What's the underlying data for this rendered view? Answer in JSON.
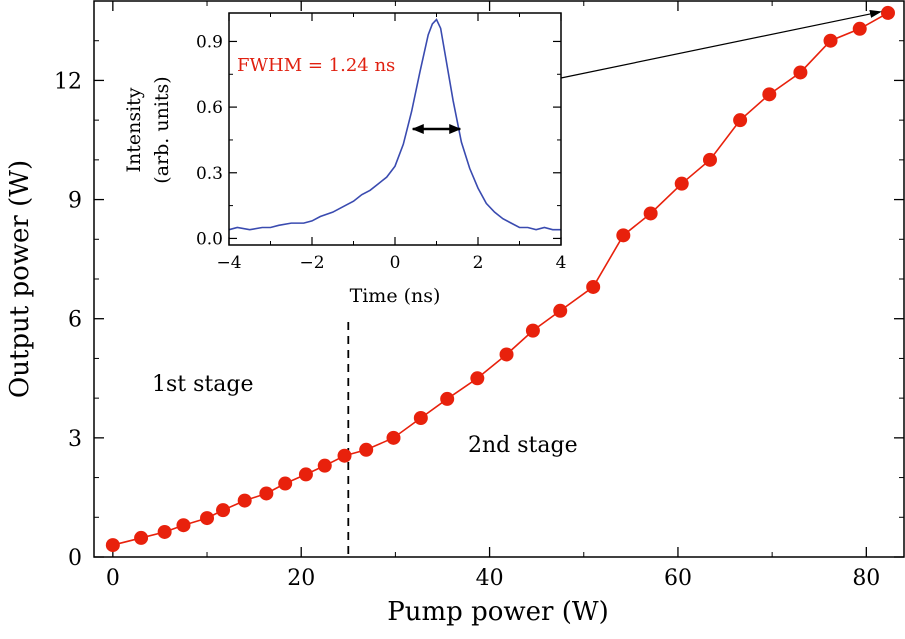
{
  "chart_data": [
    {
      "type": "line",
      "name": "main",
      "xlabel": "Pump power (W)",
      "ylabel": "Output power (W)",
      "xlim": [
        -2,
        84
      ],
      "ylim": [
        0,
        14
      ],
      "xticks": [
        0,
        20,
        40,
        60,
        80
      ],
      "yticks": [
        0,
        3,
        6,
        9,
        12
      ],
      "xtick_labels": [
        "0",
        "20",
        "40",
        "60",
        "80"
      ],
      "ytick_labels": [
        "0",
        "3",
        "6",
        "9",
        "12"
      ],
      "marker": "circle",
      "series": [
        {
          "name": "Output power",
          "color": "#e8210c",
          "x": [
            0,
            3,
            5.5,
            7.5,
            10,
            11.7,
            14,
            16.3,
            18.3,
            20.5,
            22.5,
            24.6,
            26.9,
            29.8,
            32.7,
            35.5,
            38.7,
            41.8,
            44.6,
            47.5,
            51,
            54.2,
            57.1,
            60.4,
            63.4,
            66.6,
            69.7,
            73,
            76.2,
            79.3,
            82.3
          ],
          "y": [
            0.3,
            0.48,
            0.63,
            0.8,
            0.98,
            1.18,
            1.42,
            1.6,
            1.85,
            2.08,
            2.3,
            2.55,
            2.7,
            3.0,
            3.5,
            3.98,
            4.5,
            5.1,
            5.7,
            6.2,
            6.8,
            8.1,
            8.65,
            9.4,
            10.0,
            11.0,
            11.65,
            12.2,
            13.0,
            13.3,
            13.7
          ]
        }
      ],
      "annotations": {
        "stage1": "1st stage",
        "stage2": "2nd stage",
        "divider_x": 25
      }
    },
    {
      "type": "line",
      "name": "inset",
      "xlabel": "Time (ns)",
      "ylabel_line1": "Intensity",
      "ylabel_line2": "(arb. units)",
      "xlim": [
        -4,
        4
      ],
      "ylim": [
        -0.03,
        1.03
      ],
      "xticks": [
        -4,
        -2,
        0,
        2,
        4
      ],
      "yticks": [
        0.0,
        0.3,
        0.6,
        0.9
      ],
      "xtick_labels": [
        "−4",
        "−2",
        "0",
        "2",
        "4"
      ],
      "ytick_labels": [
        "0.0",
        "0.3",
        "0.6",
        "0.9"
      ],
      "series": [
        {
          "name": "Pulse",
          "color": "#3a4bb0",
          "x": [
            -4.0,
            -3.8,
            -3.5,
            -3.2,
            -3.0,
            -2.8,
            -2.5,
            -2.2,
            -2.0,
            -1.8,
            -1.5,
            -1.2,
            -1.0,
            -0.8,
            -0.6,
            -0.4,
            -0.2,
            0.0,
            0.2,
            0.4,
            0.6,
            0.8,
            0.9,
            1.0,
            1.1,
            1.2,
            1.4,
            1.6,
            1.8,
            2.0,
            2.2,
            2.4,
            2.6,
            2.8,
            3.0,
            3.2,
            3.4,
            3.6,
            3.8,
            4.0
          ],
          "y": [
            0.04,
            0.05,
            0.04,
            0.05,
            0.05,
            0.06,
            0.07,
            0.07,
            0.08,
            0.1,
            0.12,
            0.15,
            0.17,
            0.2,
            0.22,
            0.25,
            0.28,
            0.33,
            0.43,
            0.58,
            0.76,
            0.93,
            0.98,
            1.0,
            0.96,
            0.85,
            0.63,
            0.44,
            0.32,
            0.23,
            0.16,
            0.12,
            0.09,
            0.07,
            0.05,
            0.05,
            0.04,
            0.05,
            0.04,
            0.04
          ]
        }
      ],
      "fwhm_label": "FWHM = 1.24 ns",
      "fwhm_range": [
        0.38,
        1.62
      ],
      "fwhm_level": 0.5
    }
  ]
}
